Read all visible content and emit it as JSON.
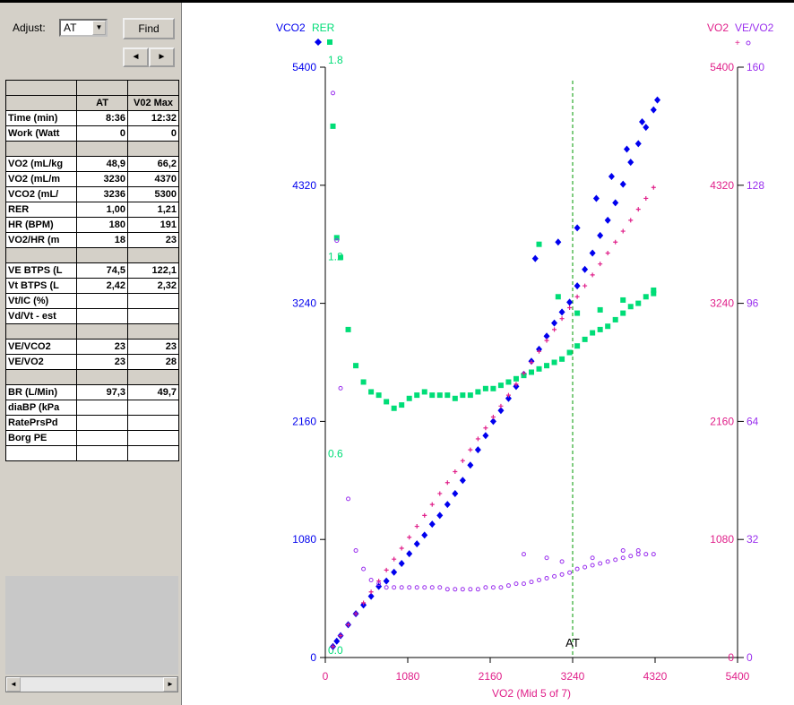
{
  "controls": {
    "adjust_label": "Adjust:",
    "adjust_value": "AT",
    "find_label": "Find",
    "prev_symbol": "◄",
    "next_symbol": "►",
    "dropdown_symbol": "▼"
  },
  "table": {
    "columns": [
      "",
      "AT",
      "V02 Max"
    ],
    "rows": [
      {
        "label": "Time (min)",
        "at": "8:36",
        "max": "12:32"
      },
      {
        "label": "Work (Watt",
        "at": "0",
        "max": "0"
      },
      {
        "label": "",
        "at": "",
        "max": "",
        "gray": true
      },
      {
        "label": "VO2 (mL/kg",
        "at": "48,9",
        "max": "66,2"
      },
      {
        "label": "VO2 (mL/m",
        "at": "3230",
        "max": "4370"
      },
      {
        "label": "VCO2 (mL/",
        "at": "3236",
        "max": "5300"
      },
      {
        "label": "RER",
        "at": "1,00",
        "max": "1,21"
      },
      {
        "label": "HR (BPM)",
        "at": "180",
        "max": "191"
      },
      {
        "label": "VO2/HR (m",
        "at": "18",
        "max": "23"
      },
      {
        "label": "",
        "at": "",
        "max": "",
        "gray": true
      },
      {
        "label": "VE BTPS (L",
        "at": "74,5",
        "max": "122,1"
      },
      {
        "label": "Vt BTPS (L",
        "at": "2,42",
        "max": "2,32"
      },
      {
        "label": "Vt/IC (%)",
        "at": "",
        "max": ""
      },
      {
        "label": "Vd/Vt - est",
        "at": "",
        "max": ""
      },
      {
        "label": "",
        "at": "",
        "max": "",
        "gray": true
      },
      {
        "label": "VE/VCO2",
        "at": "23",
        "max": "23"
      },
      {
        "label": "VE/VO2",
        "at": "23",
        "max": "28"
      },
      {
        "label": "",
        "at": "",
        "max": "",
        "gray": true
      },
      {
        "label": "BR (L/Min)",
        "at": "97,3",
        "max": "49,7"
      },
      {
        "label": "diaBP (kPa",
        "at": "",
        "max": ""
      },
      {
        "label": "RatePrsPd",
        "at": "",
        "max": ""
      },
      {
        "label": "Borg PE",
        "at": "",
        "max": ""
      },
      {
        "label": "",
        "at": "",
        "max": ""
      }
    ]
  },
  "chart_data": {
    "type": "scatter",
    "xlabel": "VO2 (Mid 5 of 7)",
    "x_ticks": [
      "0",
      "1080",
      "2160",
      "3240",
      "4320",
      "5400"
    ],
    "xlim": [
      0,
      5400
    ],
    "left_axis_titles": {
      "vco2": "VCO2",
      "rer": "RER"
    },
    "right_axis_titles": {
      "vo2": "VO2",
      "vevo2": "VE/VO2"
    },
    "y_left_ticks": [
      "0",
      "1080",
      "2160",
      "3240",
      "4320",
      "5400"
    ],
    "y_left_lim": [
      0,
      5400
    ],
    "rer_ticks": [
      "0.0",
      "0.6",
      "1.2",
      "1.8"
    ],
    "rer_lim": [
      0,
      1.8
    ],
    "y_right_ticks_vo2": [
      "0",
      "1080",
      "2160",
      "3240",
      "4320",
      "5400"
    ],
    "y_right_ticks_vevo2": [
      "0",
      "32",
      "64",
      "96",
      "128",
      "160"
    ],
    "vevo2_lim": [
      0,
      160
    ],
    "at_marker": {
      "x": 3240,
      "label": "AT"
    },
    "colors": {
      "vco2": "#0000ee",
      "rer": "#00dd77",
      "vo2": "#e0208a",
      "vevo2": "#9a30ee",
      "at_line": "#009900"
    },
    "series": [
      {
        "name": "VCO2",
        "points": [
          [
            100,
            100
          ],
          [
            150,
            150
          ],
          [
            200,
            200
          ],
          [
            300,
            300
          ],
          [
            400,
            400
          ],
          [
            500,
            480
          ],
          [
            600,
            560
          ],
          [
            700,
            650
          ],
          [
            800,
            700
          ],
          [
            900,
            780
          ],
          [
            1000,
            860
          ],
          [
            1100,
            950
          ],
          [
            1200,
            1040
          ],
          [
            1300,
            1120
          ],
          [
            1400,
            1220
          ],
          [
            1500,
            1300
          ],
          [
            1600,
            1400
          ],
          [
            1700,
            1500
          ],
          [
            1800,
            1620
          ],
          [
            1900,
            1760
          ],
          [
            2000,
            1900
          ],
          [
            2100,
            2030
          ],
          [
            2200,
            2160
          ],
          [
            2300,
            2260
          ],
          [
            2400,
            2370
          ],
          [
            2500,
            2480
          ],
          [
            2600,
            2590
          ],
          [
            2700,
            2710
          ],
          [
            2800,
            2820
          ],
          [
            2900,
            2940
          ],
          [
            3000,
            3060
          ],
          [
            3100,
            3160
          ],
          [
            3200,
            3250
          ],
          [
            3300,
            3400
          ],
          [
            3400,
            3550
          ],
          [
            3500,
            3700
          ],
          [
            3600,
            3860
          ],
          [
            3700,
            4000
          ],
          [
            3800,
            4160
          ],
          [
            3900,
            4330
          ],
          [
            4000,
            4530
          ],
          [
            4100,
            4700
          ],
          [
            4200,
            4850
          ],
          [
            4300,
            5010
          ],
          [
            4350,
            5100
          ],
          [
            2750,
            3650
          ],
          [
            3050,
            3800
          ],
          [
            3300,
            3930
          ],
          [
            3550,
            4200
          ],
          [
            3750,
            4400
          ],
          [
            3950,
            4650
          ],
          [
            4150,
            4900
          ]
        ]
      },
      {
        "name": "RER",
        "points": [
          [
            100,
            1.62
          ],
          [
            150,
            1.28
          ],
          [
            200,
            1.22
          ],
          [
            300,
            1.0
          ],
          [
            400,
            0.89
          ],
          [
            500,
            0.84
          ],
          [
            600,
            0.81
          ],
          [
            700,
            0.8
          ],
          [
            800,
            0.78
          ],
          [
            900,
            0.76
          ],
          [
            1000,
            0.77
          ],
          [
            1100,
            0.79
          ],
          [
            1200,
            0.8
          ],
          [
            1300,
            0.81
          ],
          [
            1400,
            0.8
          ],
          [
            1500,
            0.8
          ],
          [
            1600,
            0.8
          ],
          [
            1700,
            0.79
          ],
          [
            1800,
            0.8
          ],
          [
            1900,
            0.8
          ],
          [
            2000,
            0.81
          ],
          [
            2100,
            0.82
          ],
          [
            2200,
            0.82
          ],
          [
            2300,
            0.83
          ],
          [
            2400,
            0.84
          ],
          [
            2500,
            0.85
          ],
          [
            2600,
            0.86
          ],
          [
            2700,
            0.87
          ],
          [
            2800,
            0.88
          ],
          [
            2900,
            0.89
          ],
          [
            3000,
            0.9
          ],
          [
            3100,
            0.91
          ],
          [
            3200,
            0.93
          ],
          [
            3300,
            0.95
          ],
          [
            3400,
            0.97
          ],
          [
            3500,
            0.99
          ],
          [
            3600,
            1.0
          ],
          [
            3700,
            1.01
          ],
          [
            3800,
            1.03
          ],
          [
            3900,
            1.05
          ],
          [
            4000,
            1.07
          ],
          [
            4100,
            1.08
          ],
          [
            4200,
            1.1
          ],
          [
            4300,
            1.11
          ],
          [
            2800,
            1.26
          ],
          [
            3050,
            1.1
          ],
          [
            3300,
            1.05
          ],
          [
            3600,
            1.06
          ],
          [
            3900,
            1.09
          ],
          [
            4300,
            1.12
          ]
        ]
      },
      {
        "name": "VO2",
        "points": [
          [
            100,
            100
          ],
          [
            200,
            200
          ],
          [
            300,
            300
          ],
          [
            400,
            400
          ],
          [
            500,
            500
          ],
          [
            600,
            600
          ],
          [
            700,
            700
          ],
          [
            800,
            800
          ],
          [
            900,
            900
          ],
          [
            1000,
            1000
          ],
          [
            1100,
            1100
          ],
          [
            1200,
            1200
          ],
          [
            1300,
            1300
          ],
          [
            1400,
            1400
          ],
          [
            1500,
            1500
          ],
          [
            1600,
            1600
          ],
          [
            1700,
            1700
          ],
          [
            1800,
            1800
          ],
          [
            1900,
            1900
          ],
          [
            2000,
            2000
          ],
          [
            2100,
            2100
          ],
          [
            2200,
            2200
          ],
          [
            2300,
            2300
          ],
          [
            2400,
            2400
          ],
          [
            2500,
            2500
          ],
          [
            2600,
            2600
          ],
          [
            2700,
            2700
          ],
          [
            2800,
            2800
          ],
          [
            2900,
            2900
          ],
          [
            3000,
            3000
          ],
          [
            3100,
            3100
          ],
          [
            3200,
            3200
          ],
          [
            3300,
            3300
          ],
          [
            3400,
            3400
          ],
          [
            3500,
            3500
          ],
          [
            3600,
            3600
          ],
          [
            3700,
            3700
          ],
          [
            3800,
            3800
          ],
          [
            3900,
            3900
          ],
          [
            4000,
            4000
          ],
          [
            4100,
            4100
          ],
          [
            4200,
            4200
          ],
          [
            4300,
            4300
          ]
        ]
      },
      {
        "name": "VE/VO2",
        "points": [
          [
            100,
            153
          ],
          [
            150,
            113
          ],
          [
            200,
            73
          ],
          [
            300,
            43
          ],
          [
            400,
            29
          ],
          [
            500,
            24
          ],
          [
            600,
            21
          ],
          [
            700,
            20
          ],
          [
            800,
            19
          ],
          [
            900,
            19
          ],
          [
            1000,
            19
          ],
          [
            1100,
            19
          ],
          [
            1200,
            19
          ],
          [
            1300,
            19
          ],
          [
            1400,
            19
          ],
          [
            1500,
            19
          ],
          [
            1600,
            18.5
          ],
          [
            1700,
            18.5
          ],
          [
            1800,
            18.5
          ],
          [
            1900,
            18.5
          ],
          [
            2000,
            18.5
          ],
          [
            2100,
            19
          ],
          [
            2200,
            19
          ],
          [
            2300,
            19
          ],
          [
            2400,
            19.5
          ],
          [
            2500,
            20
          ],
          [
            2600,
            20
          ],
          [
            2700,
            20.5
          ],
          [
            2800,
            21
          ],
          [
            2900,
            21.5
          ],
          [
            3000,
            22
          ],
          [
            3100,
            22.5
          ],
          [
            3200,
            23
          ],
          [
            3300,
            24
          ],
          [
            3400,
            24.5
          ],
          [
            3500,
            25
          ],
          [
            3600,
            25.5
          ],
          [
            3700,
            26
          ],
          [
            3800,
            26.5
          ],
          [
            3900,
            27
          ],
          [
            4000,
            27.5
          ],
          [
            4100,
            28
          ],
          [
            4200,
            28
          ],
          [
            4300,
            28
          ],
          [
            2600,
            28
          ],
          [
            2900,
            27
          ],
          [
            3100,
            26
          ],
          [
            3500,
            27
          ],
          [
            3900,
            29
          ],
          [
            4100,
            29
          ]
        ]
      }
    ]
  }
}
